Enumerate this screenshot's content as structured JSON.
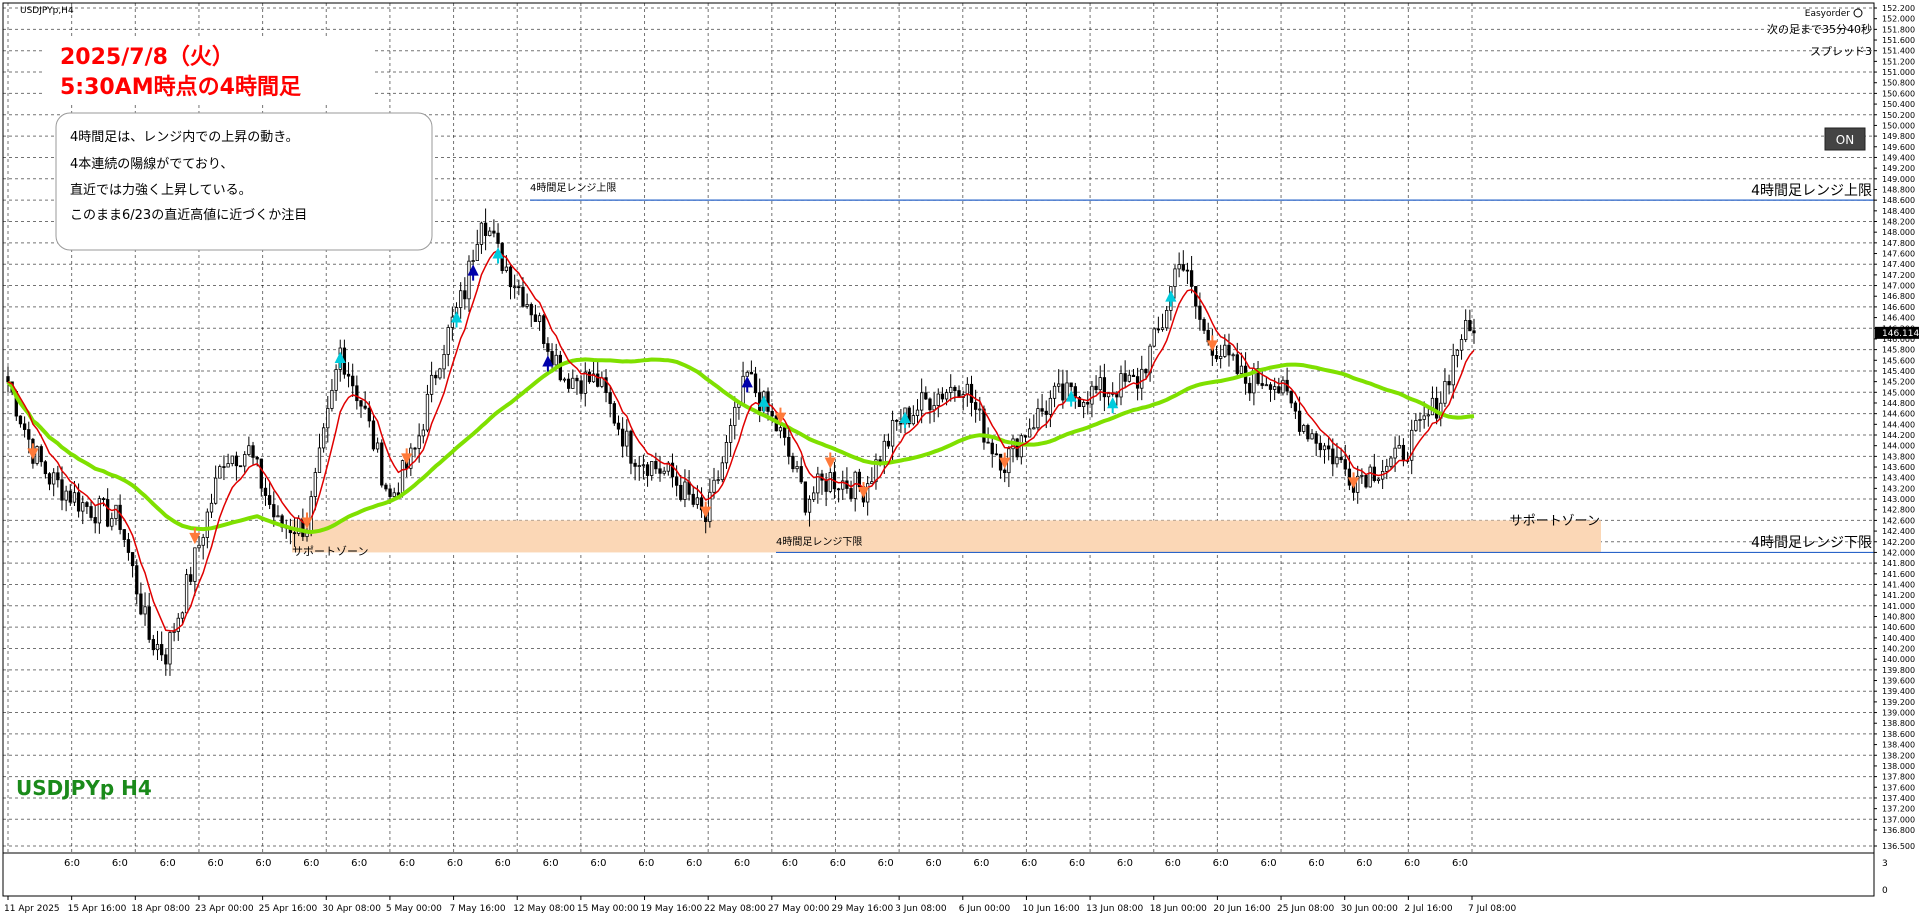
{
  "window": {
    "symbol_tab": "USDJPYp,H4",
    "symbol_label": "USDJPYp H4"
  },
  "header_box": {
    "line1": "2025/7/8（火）",
    "line2": "5:30AM時点の4時間足"
  },
  "comment_box": {
    "lines": [
      "4時間足は、レンジ内での上昇の動き。",
      "4本連続の陽線がでており、",
      "直近では力強く上昇している。",
      "このまま6/23の直近高値に近づくか注目"
    ]
  },
  "easyorder": {
    "title": "Easyorder",
    "countdown": "次の足まで35分40秒",
    "spread": "スプレッド3",
    "on_button": "ON"
  },
  "annotations": {
    "upper_range_label": "4時間足レンジ上限",
    "upper_range_label_right": "4時間足レンジ上限",
    "lower_range_label": "4時間足レンジ下限",
    "lower_range_label_right": "4時間足レンジ下限",
    "support_zone_label_left": "サポートゾーン",
    "support_zone_label_right": "サポートゾーン"
  },
  "colors": {
    "bull": "#ffffff",
    "bear": "#000000",
    "ema_fast": "#e00000",
    "ma_slow": "#7fe000",
    "range_line": "#2a64c8",
    "support_zone": "#fbd7b6",
    "current_price_bg": "#000000",
    "header_text": "#ff0000",
    "symbol_text": "#1a8a1a",
    "arrow_up_strong": "#0000aa",
    "arrow_up": "#00ccdd",
    "arrow_down": "#ff7a3a"
  },
  "chart_data": {
    "type": "candlestick",
    "symbol": "USDJPYp",
    "timeframe": "H4",
    "y_ticks": [
      "152.200",
      "152.000",
      "151.800",
      "151.600",
      "151.400",
      "151.200",
      "151.000",
      "150.800",
      "150.600",
      "150.400",
      "150.200",
      "150.000",
      "149.800",
      "149.600",
      "149.400",
      "149.200",
      "149.000",
      "148.800",
      "148.600",
      "148.400",
      "148.200",
      "148.000",
      "147.800",
      "147.600",
      "147.400",
      "147.200",
      "147.000",
      "146.800",
      "146.600",
      "146.400",
      "146.200",
      "146.000",
      "145.800",
      "145.600",
      "145.400",
      "145.200",
      "145.000",
      "144.800",
      "144.600",
      "144.400",
      "144.200",
      "144.000",
      "143.800",
      "143.600",
      "143.400",
      "143.200",
      "143.000",
      "142.800",
      "142.600",
      "142.400",
      "142.200",
      "142.000",
      "141.800",
      "141.600",
      "141.400",
      "141.200",
      "141.000",
      "140.800",
      "140.600",
      "140.400",
      "140.200",
      "140.000",
      "139.800",
      "139.600",
      "139.400",
      "139.200",
      "139.000",
      "138.800",
      "138.600",
      "138.400",
      "138.200",
      "138.000",
      "137.800",
      "137.600",
      "137.400",
      "137.200",
      "137.000",
      "136.800",
      "136.500"
    ],
    "ylim": [
      136.5,
      152.2
    ],
    "current_price": 146.114,
    "current_price_label": "146.114",
    "x_labels": [
      "11 Apr 2025",
      "15 Apr 16:00",
      "18 Apr 08:00",
      "23 Apr 00:00",
      "25 Apr 16:00",
      "30 Apr 08:00",
      "5 May 00:00",
      "7 May 16:00",
      "12 May 08:00",
      "15 May 00:00",
      "19 May 16:00",
      "22 May 08:00",
      "27 May 00:00",
      "29 May 16:00",
      "3 Jun 08:00",
      "6 Jun 00:00",
      "10 Jun 16:00",
      "13 Jun 08:00",
      "18 Jun 00:00",
      "20 Jun 16:00",
      "25 Jun 08:00",
      "30 Jun 00:00",
      "2 Jul 16:00",
      "7 Jul 08:00"
    ],
    "session_marks": [
      "6:0",
      "6:0",
      "6:0",
      "6:0",
      "6:0",
      "6:0",
      "6:0",
      "6:0",
      "6:0",
      "6:0",
      "6:0",
      "6:0",
      "6:0",
      "6:0",
      "6:0",
      "6:0",
      "6:0",
      "6:0",
      "6:0",
      "6:0",
      "6:0",
      "6:0",
      "6:0",
      "6:0",
      "6:0",
      "6:0",
      "6:0",
      "6:0",
      "6:0",
      "6:0"
    ],
    "range_upper": 148.6,
    "range_lower": 142.0,
    "support_zone": [
      142.0,
      142.6
    ],
    "keypoints": [
      [
        0,
        145.2
      ],
      [
        6,
        143.9
      ],
      [
        10,
        143.4
      ],
      [
        18,
        142.9
      ],
      [
        27,
        142.6
      ],
      [
        34,
        140.4
      ],
      [
        38,
        140.1
      ],
      [
        44,
        141.6
      ],
      [
        52,
        143.8
      ],
      [
        58,
        143.9
      ],
      [
        65,
        142.5
      ],
      [
        72,
        142.5
      ],
      [
        78,
        144.9
      ],
      [
        80,
        145.8
      ],
      [
        86,
        144.6
      ],
      [
        92,
        143.0
      ],
      [
        98,
        143.9
      ],
      [
        104,
        145.7
      ],
      [
        110,
        146.9
      ],
      [
        114,
        148.4
      ],
      [
        118,
        147.6
      ],
      [
        126,
        146.6
      ],
      [
        134,
        145.3
      ],
      [
        142,
        145.2
      ],
      [
        150,
        143.9
      ],
      [
        160,
        143.4
      ],
      [
        168,
        142.6
      ],
      [
        178,
        145.3
      ],
      [
        186,
        144.2
      ],
      [
        192,
        143.0
      ],
      [
        198,
        143.4
      ],
      [
        206,
        143.2
      ],
      [
        214,
        144.4
      ],
      [
        222,
        144.9
      ],
      [
        230,
        145.2
      ],
      [
        236,
        144.1
      ],
      [
        240,
        143.7
      ],
      [
        246,
        144.4
      ],
      [
        252,
        144.9
      ],
      [
        262,
        145.0
      ],
      [
        272,
        145.2
      ],
      [
        278,
        146.3
      ],
      [
        282,
        147.6
      ],
      [
        288,
        146.1
      ],
      [
        298,
        145.2
      ],
      [
        304,
        145.3
      ],
      [
        312,
        144.4
      ],
      [
        318,
        143.9
      ],
      [
        324,
        143.4
      ],
      [
        330,
        143.6
      ],
      [
        334,
        143.7
      ],
      [
        340,
        144.3
      ],
      [
        345,
        144.9
      ],
      [
        350,
        146.1
      ]
    ],
    "series": [
      {
        "name": "",
        "kind": "ema_fast",
        "period_hint": "short"
      },
      {
        "name": "",
        "kind": "ma_slow",
        "period_hint": "long"
      }
    ]
  }
}
